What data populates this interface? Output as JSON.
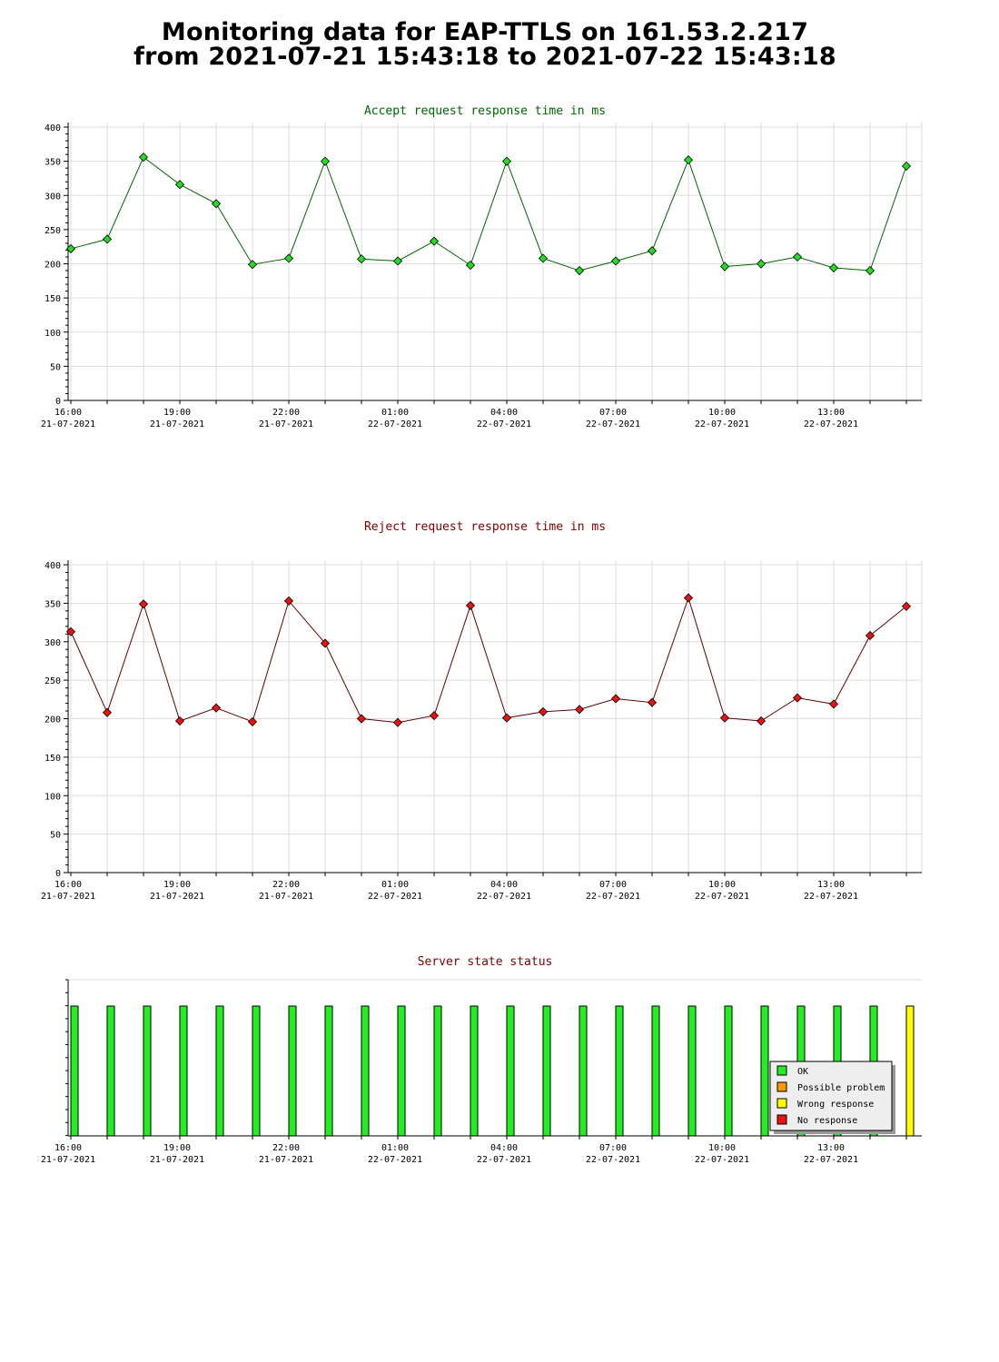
{
  "page": {
    "title_line1": "Monitoring data for EAP-TTLS on 161.53.2.217",
    "title_line2": "from 2021-07-21 15:43:18 to 2021-07-22 15:43:18"
  },
  "colors": {
    "accept_title": "#006400",
    "reject_title": "#800000",
    "status_title": "#800000",
    "accept_line": "#006400",
    "accept_marker": "#22dd22",
    "reject_line": "#600000",
    "reject_marker": "#ee1111",
    "ok": "#22ee22",
    "possible_problem": "#ff9900",
    "wrong_response": "#ffff00",
    "no_response": "#ee1111",
    "grid": "#dddddd"
  },
  "x_ticks": [
    {
      "time": "16:00",
      "date": "21-07-2021"
    },
    {
      "time": "19:00",
      "date": "21-07-2021"
    },
    {
      "time": "22:00",
      "date": "21-07-2021"
    },
    {
      "time": "01:00",
      "date": "22-07-2021"
    },
    {
      "time": "04:00",
      "date": "22-07-2021"
    },
    {
      "time": "07:00",
      "date": "22-07-2021"
    },
    {
      "time": "10:00",
      "date": "22-07-2021"
    },
    {
      "time": "13:00",
      "date": "22-07-2021"
    }
  ],
  "chart_data": [
    {
      "type": "line",
      "title": "Accept request response time in ms",
      "xlabel": "",
      "ylabel": "",
      "ylim": [
        0,
        400
      ],
      "yticks": [
        "0",
        "50",
        "100",
        "150",
        "200",
        "250",
        "300",
        "350",
        "400"
      ],
      "x_hours": [
        0,
        1,
        2,
        3,
        4,
        5,
        6,
        7,
        8,
        9,
        10,
        11,
        12,
        13,
        14,
        15,
        16,
        17,
        18,
        19,
        20,
        21,
        22,
        23
      ],
      "values": [
        222,
        236,
        356,
        316,
        288,
        199,
        208,
        350,
        207,
        204,
        233,
        198,
        350,
        208,
        190,
        204,
        219,
        352,
        196,
        200,
        210,
        194,
        190,
        343
      ]
    },
    {
      "type": "line",
      "title": "Reject request response time in ms",
      "xlabel": "",
      "ylabel": "",
      "ylim": [
        0,
        400
      ],
      "yticks": [
        "0",
        "50",
        "100",
        "150",
        "200",
        "250",
        "300",
        "350",
        "400"
      ],
      "x_hours": [
        0,
        1,
        2,
        3,
        4,
        5,
        6,
        7,
        8,
        9,
        10,
        11,
        12,
        13,
        14,
        15,
        16,
        17,
        18,
        19,
        20,
        21,
        22,
        23
      ],
      "values": [
        313,
        208,
        349,
        197,
        214,
        196,
        353,
        298,
        200,
        195,
        204,
        347,
        201,
        209,
        212,
        226,
        221,
        357,
        201,
        197,
        227,
        219,
        308,
        346
      ]
    },
    {
      "type": "bar",
      "title": "Server state status",
      "xlabel": "",
      "ylabel": "",
      "x_hours": [
        0,
        1,
        2,
        3,
        4,
        5,
        6,
        7,
        8,
        9,
        10,
        11,
        12,
        13,
        14,
        15,
        16,
        17,
        18,
        19,
        20,
        21,
        22,
        23
      ],
      "states": [
        "OK",
        "OK",
        "OK",
        "OK",
        "OK",
        "OK",
        "OK",
        "OK",
        "OK",
        "OK",
        "OK",
        "OK",
        "OK",
        "OK",
        "OK",
        "OK",
        "OK",
        "OK",
        "OK",
        "OK",
        "OK",
        "OK",
        "OK",
        "Wrong response"
      ],
      "legend_position": "bottom-right",
      "legend": [
        {
          "label": "OK",
          "state": "OK",
          "color": "#22ee22"
        },
        {
          "label": "Possible problem",
          "state": "Possible problem",
          "color": "#ff9900"
        },
        {
          "label": "Wrong response",
          "state": "Wrong response",
          "color": "#ffff00"
        },
        {
          "label": "No response",
          "state": "No response",
          "color": "#ee1111"
        }
      ]
    }
  ]
}
